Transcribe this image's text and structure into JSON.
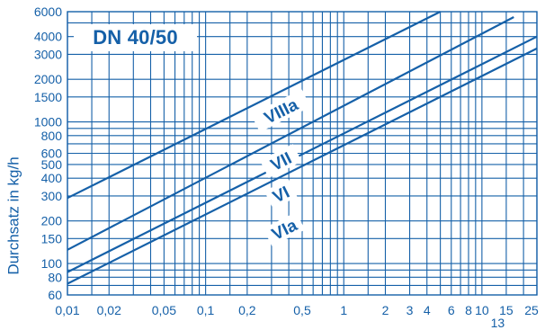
{
  "chart_data": {
    "type": "line",
    "title": "DN 40/50",
    "xlabel": "",
    "ylabel": "Durchsatz in kg/h",
    "xscale": "log",
    "yscale": "log",
    "xlim": [
      0.01,
      25
    ],
    "ylim": [
      60,
      6000
    ],
    "grid": true,
    "colors": {
      "line": "#1560a8",
      "text": "#1560a8",
      "grid": "#1560a8",
      "background": "#ffffff"
    },
    "x_ticks": [
      {
        "value": 0.01,
        "label": "0,01"
      },
      {
        "value": 0.02,
        "label": "0,02"
      },
      {
        "value": 0.05,
        "label": "0,05"
      },
      {
        "value": 0.1,
        "label": "0,1"
      },
      {
        "value": 0.2,
        "label": "0,2"
      },
      {
        "value": 0.5,
        "label": "0,5"
      },
      {
        "value": 1,
        "label": "1"
      },
      {
        "value": 2,
        "label": "2"
      },
      {
        "value": 3,
        "label": "3"
      },
      {
        "value": 4,
        "label": "4"
      },
      {
        "value": 6,
        "label": "6"
      },
      {
        "value": 8,
        "label": "8"
      },
      {
        "value": 10,
        "label": "10"
      },
      {
        "value": 15,
        "label": "15"
      },
      {
        "value": 25,
        "label": "25"
      }
    ],
    "x_extra_label": {
      "value": 13,
      "label": "13"
    },
    "x_grid": [
      0.01,
      0.015,
      0.02,
      0.03,
      0.04,
      0.05,
      0.06,
      0.07,
      0.08,
      0.09,
      0.1,
      0.15,
      0.2,
      0.3,
      0.4,
      0.5,
      0.6,
      0.7,
      0.8,
      0.9,
      1,
      1.5,
      2,
      3,
      4,
      5,
      6,
      7,
      8,
      9,
      10,
      15,
      20,
      25
    ],
    "y_ticks": [
      {
        "value": 60,
        "label": "60"
      },
      {
        "value": 80,
        "label": "80"
      },
      {
        "value": 100,
        "label": "100"
      },
      {
        "value": 150,
        "label": "150"
      },
      {
        "value": 200,
        "label": "200"
      },
      {
        "value": 300,
        "label": "300"
      },
      {
        "value": 400,
        "label": "400"
      },
      {
        "value": 500,
        "label": "500"
      },
      {
        "value": 600,
        "label": "600"
      },
      {
        "value": 800,
        "label": "800"
      },
      {
        "value": 1000,
        "label": "1000"
      },
      {
        "value": 1500,
        "label": "1500"
      },
      {
        "value": 2000,
        "label": "2000"
      },
      {
        "value": 3000,
        "label": "3000"
      },
      {
        "value": 4000,
        "label": "4000"
      },
      {
        "value": 6000,
        "label": "6000"
      }
    ],
    "y_grid": [
      60,
      70,
      80,
      90,
      100,
      150,
      200,
      300,
      400,
      500,
      600,
      700,
      800,
      900,
      1000,
      1500,
      2000,
      3000,
      4000,
      5000,
      6000
    ],
    "series": [
      {
        "name": "VIIIa",
        "label_at": {
          "x": 0.35,
          "y": 1200
        },
        "points": [
          [
            0.01,
            290
          ],
          [
            5.0,
            6000
          ]
        ]
      },
      {
        "name": "VII",
        "label_at": {
          "x": 0.35,
          "y": 530
        },
        "points": [
          [
            0.01,
            125
          ],
          [
            17.0,
            5500
          ]
        ]
      },
      {
        "name": "VI",
        "label_at": {
          "x": 0.35,
          "y": 310
        },
        "points": [
          [
            0.01,
            87
          ],
          [
            25.0,
            4000
          ]
        ]
      },
      {
        "name": "VIa",
        "label_at": {
          "x": 0.37,
          "y": 175
        },
        "points": [
          [
            0.01,
            72
          ],
          [
            25.0,
            3300
          ]
        ]
      }
    ]
  }
}
